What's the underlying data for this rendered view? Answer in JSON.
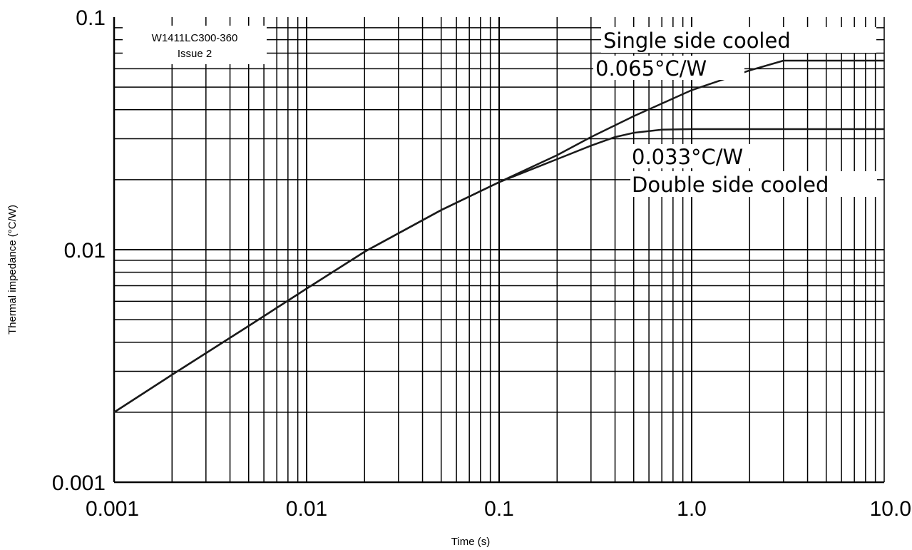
{
  "chart_data": {
    "type": "line",
    "title": "",
    "xlabel": "Time (s)",
    "ylabel": "Thermal impedance (°C/W)",
    "x_scale": "log",
    "y_scale": "log",
    "xlim": [
      0.001,
      10.0
    ],
    "ylim": [
      0.001,
      0.1
    ],
    "grid": true,
    "x_ticks": [
      {
        "value": 0.001,
        "label": "0.001"
      },
      {
        "value": 0.01,
        "label": "0.01"
      },
      {
        "value": 0.1,
        "label": "0.1"
      },
      {
        "value": 1.0,
        "label": "1.0"
      },
      {
        "value": 10.0,
        "label": "10.0"
      }
    ],
    "y_ticks": [
      {
        "value": 0.001,
        "label": "0.001"
      },
      {
        "value": 0.01,
        "label": "0.01"
      },
      {
        "value": 0.1,
        "label": "0.1"
      }
    ],
    "reference_box": {
      "line1": "W1411LC300-360",
      "line2": "Issue 2"
    },
    "series": [
      {
        "name": "Single side cooled",
        "value_label": "0.065°C/W",
        "x": [
          0.001,
          0.002,
          0.005,
          0.01,
          0.02,
          0.05,
          0.1,
          0.2,
          0.3,
          0.5,
          1.0,
          2.0,
          3.0,
          10.0
        ],
        "y": [
          0.002,
          0.0029,
          0.0047,
          0.0068,
          0.0098,
          0.0148,
          0.0195,
          0.0255,
          0.0305,
          0.0375,
          0.0485,
          0.059,
          0.065,
          0.065
        ]
      },
      {
        "name": "Double side cooled",
        "value_label": "0.033°C/W",
        "x": [
          0.001,
          0.002,
          0.005,
          0.01,
          0.02,
          0.05,
          0.1,
          0.2,
          0.3,
          0.4,
          0.5,
          0.7,
          1.0,
          10.0
        ],
        "y": [
          0.002,
          0.0029,
          0.0047,
          0.0068,
          0.0098,
          0.0148,
          0.0195,
          0.0245,
          0.028,
          0.0305,
          0.0318,
          0.0328,
          0.033,
          0.033
        ]
      }
    ]
  }
}
